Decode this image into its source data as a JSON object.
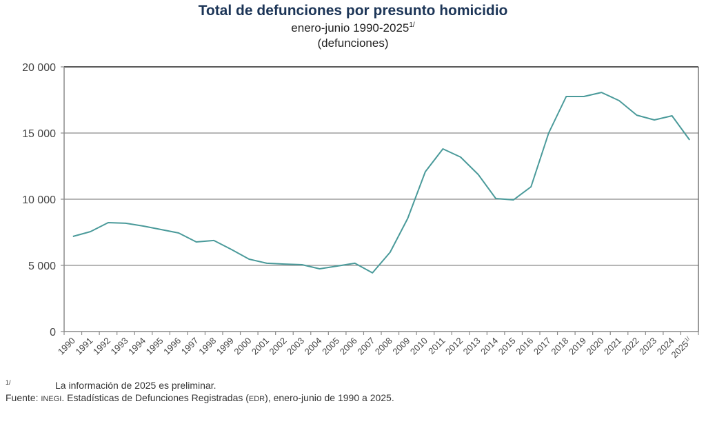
{
  "chart_data": {
    "type": "line",
    "title": "Total de defunciones por presunto homicidio",
    "subtitle": "enero-junio 1990-2025",
    "subtitle_sup": "1/",
    "unit_label": "(defunciones)",
    "xlabel": "",
    "ylabel": "",
    "ylim": [
      0,
      20000
    ],
    "yticks": [
      0,
      5000,
      10000,
      15000,
      20000
    ],
    "ytick_labels": [
      "0",
      "5 000",
      "10 000",
      "15 000",
      "20 000"
    ],
    "grid": true,
    "legend": "none",
    "line_color": "#4a9a9a",
    "categories": [
      "1990",
      "1991",
      "1992",
      "1993",
      "1994",
      "1995",
      "1996",
      "1997",
      "1998",
      "1999",
      "2000",
      "2001",
      "2002",
      "2003",
      "2004",
      "2005",
      "2006",
      "2007",
      "2008",
      "2009",
      "2010",
      "2011",
      "2012",
      "2013",
      "2014",
      "2015",
      "2016",
      "2017",
      "2018",
      "2019",
      "2020",
      "2021",
      "2022",
      "2023",
      "2024",
      "2025"
    ],
    "last_category_sup": "1/",
    "series": [
      {
        "name": "Total de defunciones por presunto homicidio",
        "values": [
          7190,
          7550,
          8230,
          8180,
          7970,
          7710,
          7450,
          6770,
          6880,
          6200,
          5470,
          5160,
          5100,
          5050,
          4740,
          4950,
          5160,
          4430,
          5990,
          8540,
          12080,
          13800,
          13180,
          11870,
          10050,
          9950,
          10940,
          15000,
          17760,
          17760,
          18070,
          17450,
          16350,
          15990,
          16300,
          14480
        ]
      }
    ]
  },
  "footnotes": {
    "note_mark": "1/",
    "note_text": "La información de 2025 es preliminar.",
    "source_label": "Fuente:",
    "source_org": "INEGI",
    "source_text_1": ". Estadísticas de Defunciones Registradas (",
    "source_abbrev": "EDR",
    "source_text_2": "), enero-junio de 1990 a 2025."
  }
}
